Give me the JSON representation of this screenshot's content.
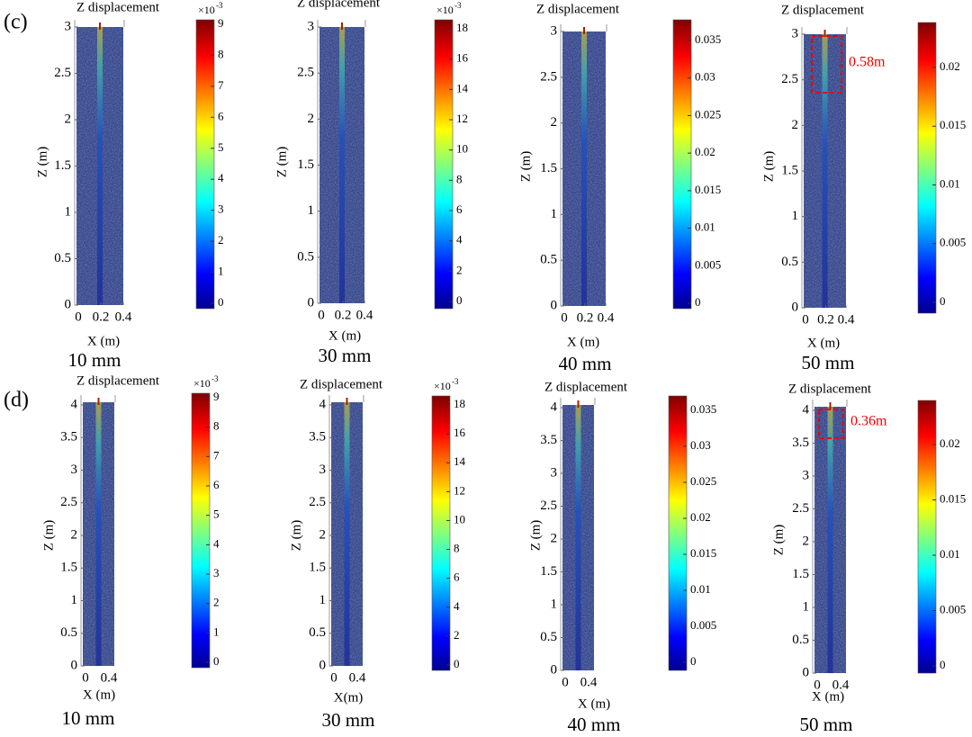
{
  "row_labels": [
    "(c)",
    "(d)"
  ],
  "panels": [
    {
      "title": "Z displacement",
      "ylabel": "Z (m)",
      "xlabel": "X (m)",
      "yticks": [
        0,
        0.5,
        1,
        1.5,
        2,
        2.5,
        3
      ],
      "xticks": [
        0,
        0.2,
        0.4
      ],
      "colorbar": {
        "ticks": [
          0,
          1,
          2,
          3,
          4,
          5,
          6,
          7,
          8,
          9
        ],
        "scale_base": "×10",
        "scale_power": "-3"
      },
      "caption": "10 mm"
    },
    {
      "title": "Z displacement",
      "ylabel": "Z (m)",
      "xlabel": "X (m)",
      "yticks": [
        0,
        0.5,
        1,
        1.5,
        2,
        2.5,
        3
      ],
      "xticks": [
        0,
        0.2,
        0.4
      ],
      "colorbar": {
        "ticks": [
          0,
          2,
          4,
          6,
          8,
          10,
          12,
          14,
          16,
          18
        ],
        "scale_base": "×10",
        "scale_power": "-3"
      },
      "caption": "30 mm"
    },
    {
      "title": "Z displacement",
      "ylabel": "Z (m)",
      "xlabel": "X (m)",
      "yticks": [
        0,
        0.5,
        1,
        1.5,
        2,
        2.5,
        3
      ],
      "xticks": [
        0,
        0.2,
        0.4
      ],
      "colorbar": {
        "ticks": [
          0,
          0.005,
          0.01,
          0.015,
          0.02,
          0.025,
          0.03,
          0.035
        ]
      },
      "caption": "40 mm"
    },
    {
      "title": "Z displacement",
      "ylabel": "Z (m)",
      "xlabel": "X (m)",
      "yticks": [
        0,
        0.5,
        1,
        1.5,
        2,
        2.5,
        3
      ],
      "xticks": [
        0,
        0.2,
        0.4
      ],
      "colorbar": {
        "ticks": [
          0,
          0.005,
          0.01,
          0.015,
          0.02
        ]
      },
      "caption": "50 mm",
      "annotation": "0.58m"
    },
    {
      "title": "Z displacement",
      "ylabel": "Z (m)",
      "xlabel": "X (m)",
      "yticks": [
        0,
        0.5,
        1,
        1.5,
        2,
        2.5,
        3,
        3.5,
        4
      ],
      "xticks": [
        0,
        0.4
      ],
      "colorbar": {
        "ticks": [
          0,
          1,
          2,
          3,
          4,
          5,
          6,
          7,
          8,
          9
        ],
        "scale_base": "×10",
        "scale_power": "-3"
      },
      "caption": "10 mm"
    },
    {
      "title": "Z displacement",
      "ylabel": "Z (m)",
      "xlabel": "X(m)",
      "yticks": [
        0,
        0.5,
        1,
        1.5,
        2,
        2.5,
        3,
        3.5,
        4
      ],
      "xticks": [
        0,
        0.4
      ],
      "colorbar": {
        "ticks": [
          0,
          2,
          4,
          6,
          8,
          10,
          12,
          14,
          16,
          18
        ],
        "scale_base": "×10",
        "scale_power": "-3"
      },
      "caption": "30 mm"
    },
    {
      "title": "Z displacement",
      "ylabel": "Z (m)",
      "xlabel": "X (m)",
      "yticks": [
        0,
        0.5,
        1,
        1.5,
        2,
        2.5,
        3,
        3.5,
        4
      ],
      "xticks": [
        0,
        0.4
      ],
      "colorbar": {
        "ticks": [
          0,
          0.005,
          0.01,
          0.015,
          0.02,
          0.025,
          0.03,
          0.035
        ]
      },
      "caption": "40 mm"
    },
    {
      "title": "Z displacement",
      "ylabel": "Z (m)",
      "xlabel": "X (m)",
      "yticks": [
        0,
        0.5,
        1,
        1.5,
        2,
        2.5,
        3,
        3.5,
        4
      ],
      "xticks": [
        0,
        0.4
      ],
      "colorbar": {
        "ticks": [
          0,
          0.005,
          0.01,
          0.015,
          0.02
        ]
      },
      "caption": "50 mm",
      "annotation": "0.36m"
    }
  ]
}
